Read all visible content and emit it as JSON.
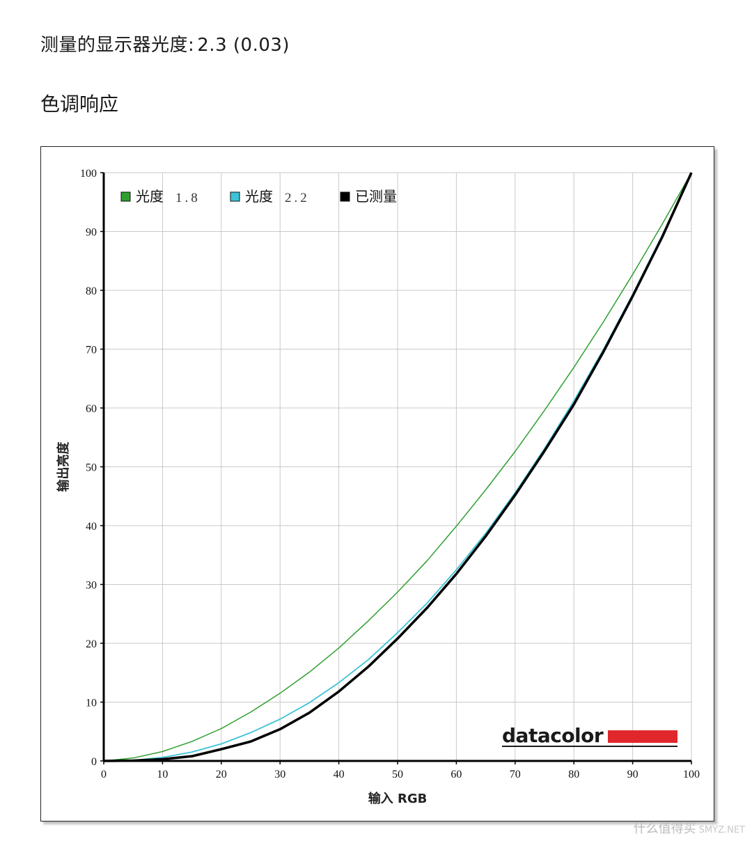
{
  "header": {
    "gamma_label": "测量的显示器光度:",
    "gamma_value": "2.3 (0.03)",
    "section_title": "色调响应"
  },
  "chart_data": {
    "type": "line",
    "xlabel": "输入 RGB",
    "ylabel": "输出亮度",
    "xlim": [
      0,
      100
    ],
    "ylim": [
      0,
      100
    ],
    "xticks": [
      0,
      10,
      20,
      30,
      40,
      50,
      60,
      70,
      80,
      90,
      100
    ],
    "yticks": [
      0,
      10,
      20,
      30,
      40,
      50,
      60,
      70,
      80,
      90,
      100
    ],
    "grid": true,
    "legend_position": "top-left",
    "x": [
      0,
      5,
      10,
      15,
      20,
      25,
      30,
      35,
      40,
      45,
      50,
      55,
      60,
      65,
      70,
      75,
      80,
      85,
      90,
      95,
      100
    ],
    "series": [
      {
        "name": "光度",
        "legend_value": "1.8",
        "color": "#2e9e2e",
        "values": [
          0,
          0.5,
          1.6,
          3.3,
          5.5,
          8.3,
          11.5,
          15.1,
          19.2,
          23.8,
          28.7,
          34.0,
          39.9,
          46.1,
          52.6,
          59.6,
          66.9,
          74.6,
          82.7,
          91.2,
          100
        ]
      },
      {
        "name": "光度",
        "legend_value": "2.2",
        "color": "#3cc3d6",
        "values": [
          0,
          0.1,
          0.6,
          1.5,
          2.9,
          4.8,
          7.1,
          9.9,
          13.3,
          17.2,
          21.8,
          26.8,
          32.5,
          38.7,
          45.6,
          53.1,
          61.2,
          69.9,
          79.3,
          89.3,
          100
        ]
      },
      {
        "name": "已测量",
        "color": "#000000",
        "values": [
          0,
          0.05,
          0.3,
          0.8,
          2.0,
          3.3,
          5.4,
          8.2,
          11.8,
          16.0,
          20.8,
          26.0,
          31.8,
          38.2,
          45.2,
          52.7,
          60.6,
          69.5,
          79.0,
          89.0,
          100
        ]
      }
    ]
  },
  "brand": {
    "name": "datacolor",
    "accent_color": "#e0282c"
  },
  "watermark": {
    "text": "什么值得买",
    "sub": "SMYZ.NET"
  }
}
